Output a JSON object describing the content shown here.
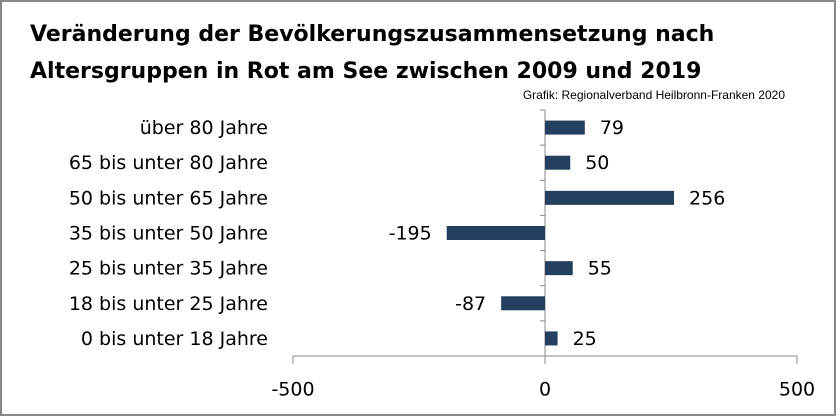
{
  "chart_data": {
    "type": "bar",
    "orientation": "horizontal",
    "title": "Veränderung der Bevölkerungszusammensetzung nach Altersgruppen in Rot am See zwischen 2009 und 2019",
    "title_lines": [
      "Veränderung der Bevölkerungszusammensetzung nach",
      "Altersgruppen in Rot am See zwischen 2009 und 2019"
    ],
    "subtitle": "Grafik: Regionalverband Heilbronn-Franken 2020",
    "categories": [
      "über 80 Jahre",
      "65 bis unter 80 Jahre",
      "50 bis unter 65 Jahre",
      "35 bis unter 50 Jahre",
      "25 bis unter 35 Jahre",
      "18 bis unter 25 Jahre",
      "0 bis unter 18 Jahre"
    ],
    "values": [
      79,
      50,
      256,
      -195,
      55,
      -87,
      25
    ],
    "color": "#243f60",
    "xlim": [
      -500,
      500
    ],
    "xticks": [
      -500,
      0,
      500
    ],
    "grid": false
  }
}
